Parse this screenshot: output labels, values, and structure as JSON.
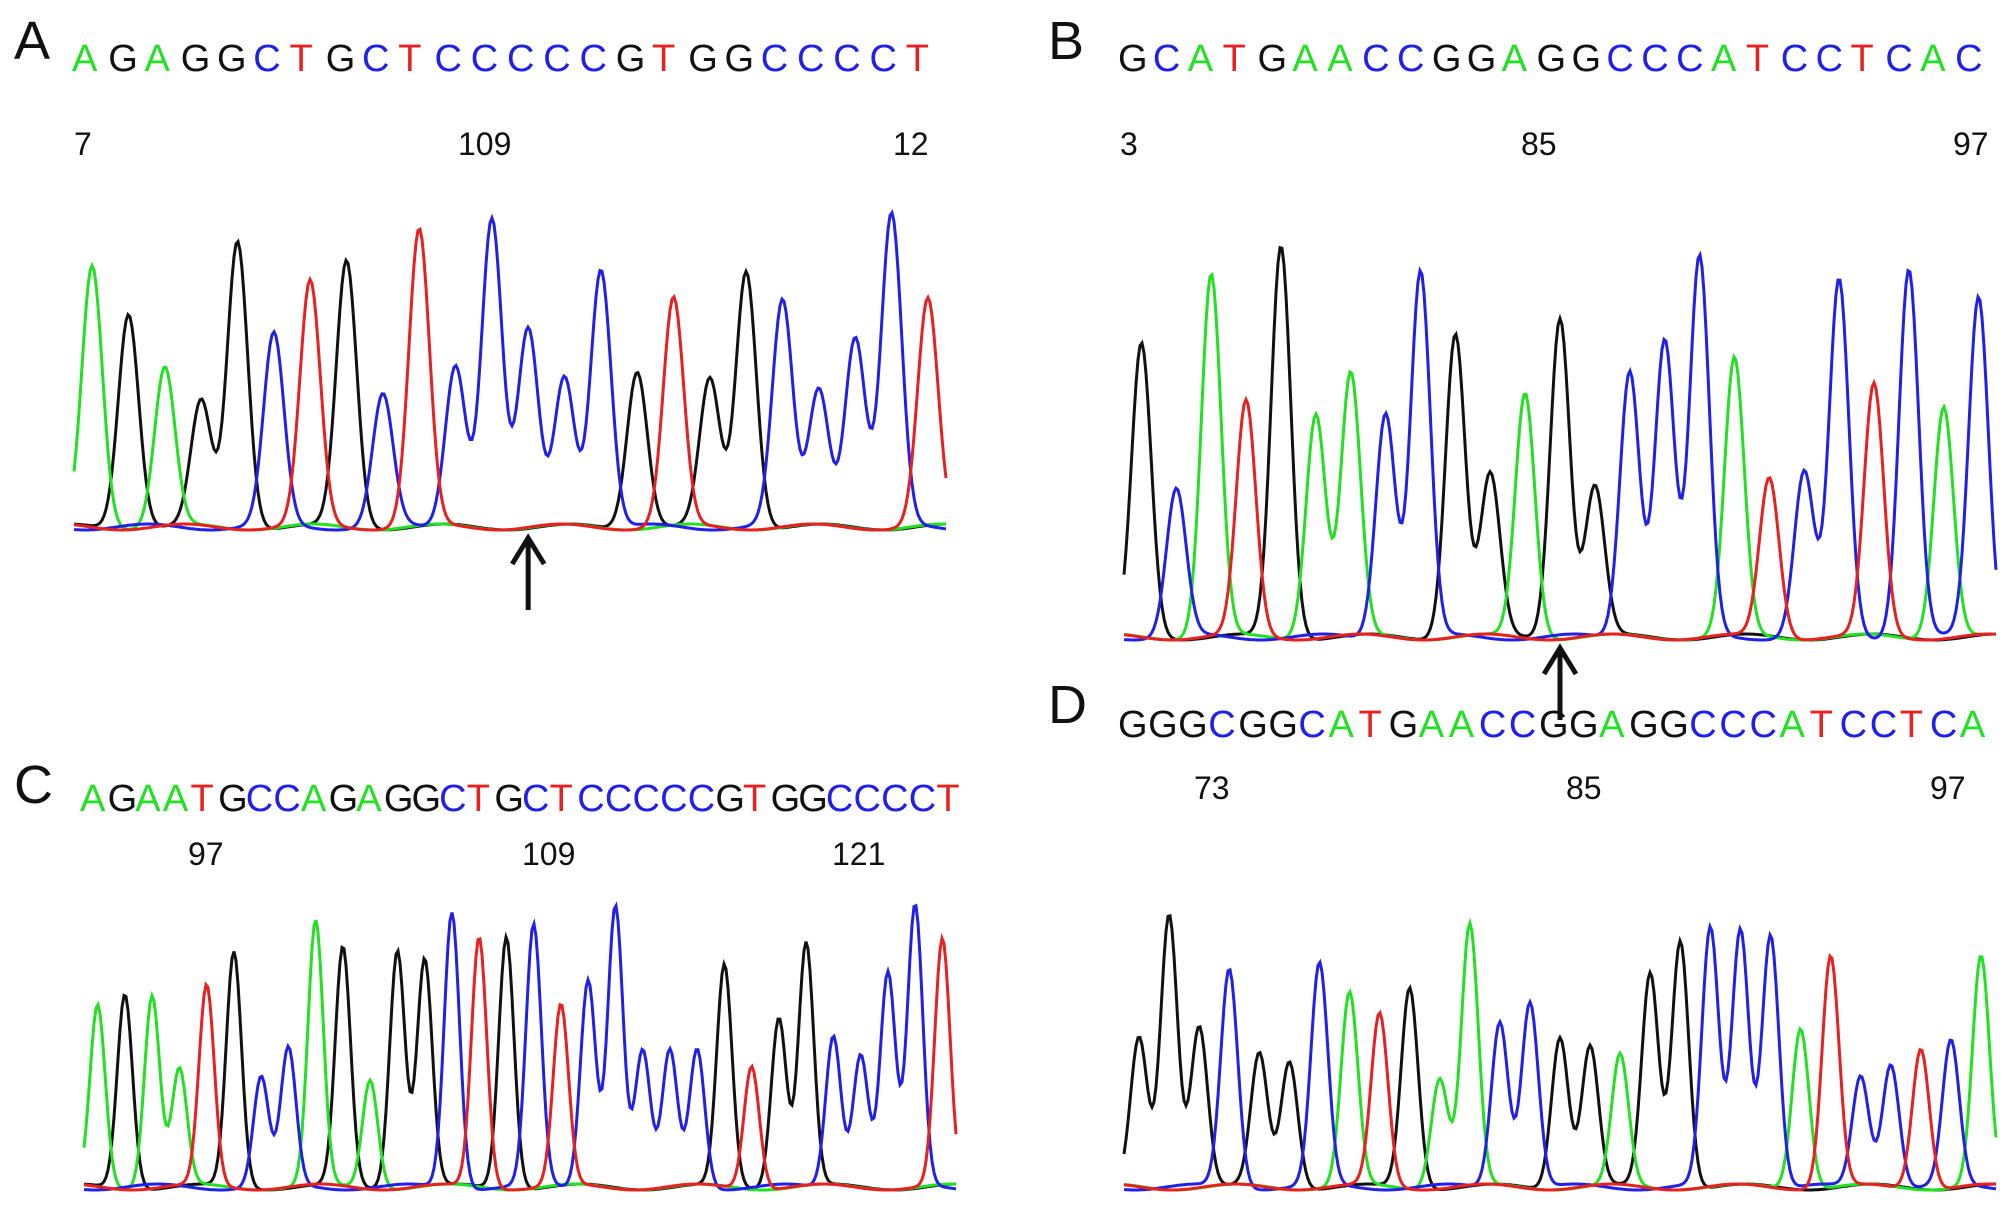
{
  "base_colors": {
    "A": "#22e022",
    "C": "#2020e8",
    "G": "#111111",
    "T": "#e82020"
  },
  "arrow_icon": "up-arrow-icon",
  "panels": [
    {
      "id": "A",
      "label": "A",
      "sequence": "AGAGGCTGCTCCCCCGTGGCCCCT",
      "position_labels": [
        "7",
        "109",
        "12"
      ],
      "has_arrow": true
    },
    {
      "id": "B",
      "label": "B",
      "sequence": "GCATGAACCGGAGGCCCATCCTCAC",
      "position_labels": [
        "3",
        "85",
        "97"
      ],
      "has_arrow": true
    },
    {
      "id": "C",
      "label": "C",
      "sequence": "AGAATGCCAGAGGCTGCTCCCCCGTGGCCCCT",
      "position_labels": [
        "97",
        "109",
        "121"
      ],
      "has_arrow": false
    },
    {
      "id": "D",
      "label": "D",
      "sequence": "GGGCGGCATGAACCGGAGGCCCATCCTCA",
      "position_labels": [
        "73",
        "85",
        "97"
      ],
      "has_arrow": false
    }
  ]
}
